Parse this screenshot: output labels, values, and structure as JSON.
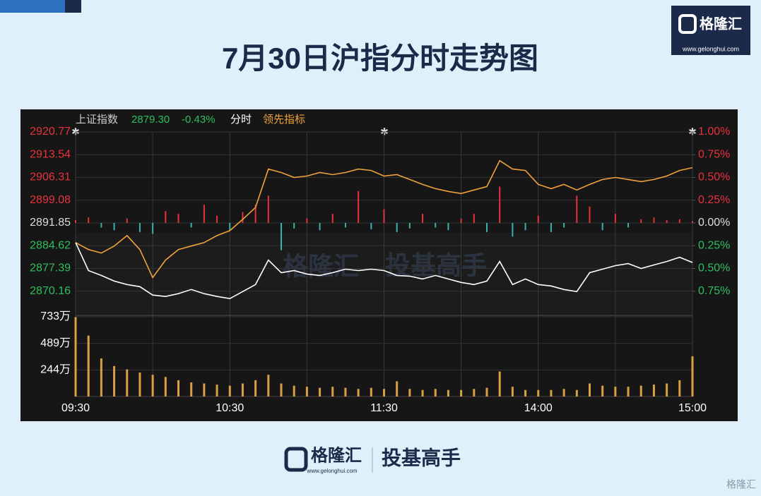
{
  "header": {
    "title": "7月30日沪指分时走势图",
    "logo": "格隆汇",
    "url": "www.gelonghui.com"
  },
  "footer": {
    "logo": "格隆汇",
    "url": "www.gelonghui.com",
    "slogan": "投基高手",
    "watermark": "格隆汇"
  },
  "chart_data": {
    "type": "intraday",
    "quote": {
      "name": "上证指数",
      "price": "2879.30",
      "change": "-0.43%"
    },
    "watermark": {
      "logo": "格隆汇",
      "slogan": "投基高手"
    },
    "x": [
      0,
      5,
      10,
      15,
      20,
      25,
      30,
      35,
      40,
      45,
      50,
      55,
      60,
      65,
      70,
      75,
      80,
      85,
      90,
      95,
      100,
      105,
      110,
      115,
      120,
      125,
      130,
      135,
      140,
      145,
      150,
      155,
      160,
      165,
      170,
      175,
      180,
      185,
      190,
      195,
      200,
      205,
      210,
      215,
      220,
      225,
      230,
      235,
      240
    ],
    "xlim": [
      0,
      240
    ],
    "xticks": [
      {
        "value": 0,
        "label": "09:30"
      },
      {
        "value": 60,
        "label": "10:30"
      },
      {
        "value": 120,
        "label": "11:30"
      },
      {
        "value": 180,
        "label": "14:00"
      },
      {
        "value": 240,
        "label": "15:00"
      }
    ],
    "ylim": [
      2862.93,
      2920.77
    ],
    "yticks": [
      2920.77,
      2913.54,
      2906.31,
      2899.08,
      2891.85,
      2884.62,
      2877.39,
      2870.16
    ],
    "y2lim": [
      -1,
      1
    ],
    "y2ticks": [
      {
        "value": 1,
        "label": "1.00%"
      },
      {
        "value": 0.75,
        "label": "0.75%"
      },
      {
        "value": 0.5,
        "label": "0.50%"
      },
      {
        "value": 0.25,
        "label": "0.25%"
      },
      {
        "value": 0,
        "label": "0.00%"
      },
      {
        "value": -0.25,
        "label": "0.25%"
      },
      {
        "value": -0.5,
        "label": "0.50%"
      },
      {
        "value": -0.75,
        "label": "0.75%"
      }
    ],
    "up_color": "#e8323c",
    "down_color": "#2fbf5f",
    "series": [
      {
        "name": "分时",
        "color": "#ffffff",
        "values": [
          2885.62,
          2876.72,
          2875.16,
          2873.38,
          2872.27,
          2871.6,
          2868.93,
          2868.49,
          2869.38,
          2870.71,
          2869.38,
          2868.49,
          2867.82,
          2870.04,
          2872.27,
          2880.06,
          2876.05,
          2876.72,
          2875.61,
          2875.16,
          2876.05,
          2877.16,
          2876.72,
          2877.16,
          2876.72,
          2875.16,
          2874.94,
          2874.05,
          2875.16,
          2874.05,
          2872.94,
          2872.27,
          2873.38,
          2879.61,
          2872.27,
          2874.05,
          2872.27,
          2871.82,
          2870.71,
          2870.04,
          2876.05,
          2877.16,
          2878.28,
          2878.94,
          2877.39,
          2878.5,
          2879.61,
          2880.95,
          2879.3
        ]
      },
      {
        "name": "领先指标",
        "color": "#f0a23a",
        "values": [
          2885.62,
          2883.39,
          2882.28,
          2884.51,
          2887.84,
          2883.39,
          2874.49,
          2880.06,
          2883.39,
          2884.51,
          2885.62,
          2887.84,
          2889.4,
          2892.96,
          2896.75,
          2908.98,
          2907.87,
          2906.31,
          2906.76,
          2907.87,
          2907.2,
          2907.87,
          2908.98,
          2908.54,
          2906.76,
          2907.2,
          2905.65,
          2904.09,
          2902.75,
          2901.86,
          2901.2,
          2902.31,
          2903.42,
          2911.65,
          2908.98,
          2908.54,
          2904.09,
          2902.75,
          2904.09,
          2902.31,
          2904.09,
          2905.65,
          2906.31,
          2905.65,
          2904.98,
          2905.65,
          2906.76,
          2908.54,
          2909.43
        ]
      }
    ],
    "flow": {
      "axis": "y2",
      "up_color": "#e8323c",
      "down_color": "#35b3b0",
      "values": [
        0.03,
        0.06,
        -0.05,
        -0.08,
        0.05,
        -0.1,
        -0.12,
        0.13,
        0.1,
        -0.05,
        0.2,
        0.08,
        -0.08,
        0.12,
        0.2,
        0.3,
        -0.3,
        -0.06,
        0.05,
        -0.08,
        0.1,
        -0.05,
        0.35,
        -0.07,
        0.15,
        -0.1,
        -0.06,
        0.1,
        -0.05,
        -0.08,
        0.05,
        0.1,
        -0.1,
        0.4,
        -0.15,
        -0.08,
        0.08,
        -0.1,
        -0.05,
        0.3,
        0.18,
        -0.08,
        0.1,
        -0.05,
        0.04,
        0.06,
        0.03,
        0.04,
        0.02
      ]
    },
    "volume": {
      "color": "#d9a040",
      "lim": [
        0,
        733
      ],
      "ticks": [
        {
          "value": 733,
          "label": "733万"
        },
        {
          "value": 489,
          "label": "489万"
        },
        {
          "value": 244,
          "label": "244万"
        }
      ],
      "values": [
        730,
        560,
        350,
        280,
        250,
        220,
        200,
        180,
        150,
        130,
        120,
        110,
        100,
        120,
        150,
        200,
        120,
        100,
        90,
        80,
        90,
        80,
        70,
        80,
        70,
        140,
        70,
        60,
        70,
        60,
        60,
        70,
        80,
        230,
        90,
        60,
        60,
        60,
        70,
        60,
        120,
        100,
        90,
        90,
        100,
        110,
        120,
        150,
        370
      ]
    }
  }
}
